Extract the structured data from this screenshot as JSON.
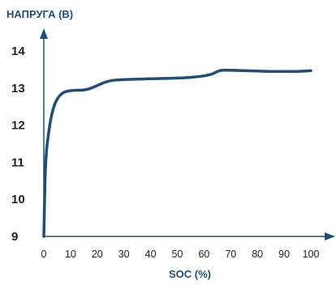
{
  "chart_data": {
    "type": "line",
    "title": "",
    "ylabel": "НАПРУГА (В)",
    "xlabel": "SOC (%)",
    "xlim": [
      0,
      100
    ],
    "ylim": [
      9,
      14
    ],
    "x_ticks": [
      "0",
      "10",
      "20",
      "30",
      "40",
      "50",
      "60",
      "70",
      "80",
      "90",
      "100"
    ],
    "y_ticks": [
      "9",
      "10",
      "11",
      "12",
      "13",
      "14"
    ],
    "grid": false,
    "series": [
      {
        "name": "",
        "color": "#1f4e79",
        "x": [
          0,
          0.5,
          1,
          2,
          3,
          4,
          5,
          6,
          7,
          8,
          10,
          12,
          15,
          17,
          20,
          23,
          26,
          28,
          30,
          35,
          40,
          45,
          50,
          55,
          60,
          63,
          65,
          66,
          67,
          70,
          75,
          80,
          85,
          90,
          95,
          100
        ],
        "y": [
          9.0,
          10.6,
          11.3,
          11.9,
          12.3,
          12.55,
          12.7,
          12.8,
          12.86,
          12.9,
          12.93,
          12.94,
          12.95,
          12.98,
          13.07,
          13.16,
          13.21,
          13.22,
          13.23,
          13.24,
          13.25,
          13.26,
          13.27,
          13.29,
          13.33,
          13.38,
          13.45,
          13.47,
          13.48,
          13.48,
          13.47,
          13.46,
          13.45,
          13.45,
          13.45,
          13.47
        ]
      }
    ]
  },
  "colors": {
    "axis": "#1f4e79",
    "line": "#1f4e79",
    "text": "#222222"
  }
}
